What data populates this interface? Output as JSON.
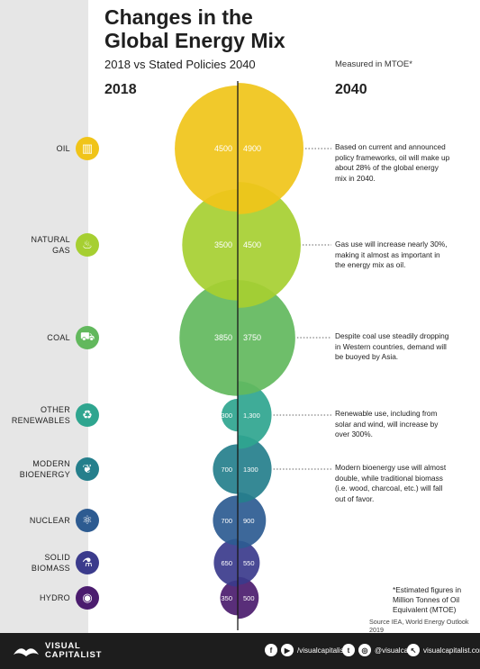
{
  "header": {
    "title_line1": "Changes in the",
    "title_line2": "Global Energy Mix",
    "subtitle": "2018 vs Stated Policies 2040",
    "measured": "Measured in MTOE*",
    "year_left": "2018",
    "year_right": "2040"
  },
  "categories": [
    {
      "label": "OIL",
      "icon": "oil-barrel-icon",
      "color": "#f0c419",
      "note": "Based on current and announced policy frameworks, oil will make up about 28% of the global energy mix in 2040."
    },
    {
      "label": "NATURAL\nGAS",
      "icon": "flame-icon",
      "color": "#a6cf31",
      "note": "Gas use will increase nearly 30%, making it almost as important in the energy mix as oil."
    },
    {
      "label": "COAL",
      "icon": "coal-cart-icon",
      "color": "#62b85d",
      "note": "Despite coal use steadily dropping in Western countries, demand will be buoyed by Asia."
    },
    {
      "label": "OTHER\nRENEWABLES",
      "icon": "recycle-icon",
      "color": "#2fa58f",
      "note": "Renewable use, including from solar and wind, will increase by over 300%."
    },
    {
      "label": "MODERN\nBIOENERGY",
      "icon": "leaf-icon",
      "color": "#257f8c",
      "note": "Modern bioenergy use will almost double, while traditional biomass (i.e. wood, charcoal, etc.) will fall out of favor."
    },
    {
      "label": "NUCLEAR",
      "icon": "atom-icon",
      "color": "#2d5b91",
      "note": ""
    },
    {
      "label": "SOLID\nBIOMASS",
      "icon": "flask-icon",
      "color": "#3b3b8c",
      "note": ""
    },
    {
      "label": "HYDRO",
      "icon": "water-drop-icon",
      "color": "#4b1c6e",
      "note": ""
    }
  ],
  "chart_data": {
    "type": "bubble",
    "categories": [
      "Oil",
      "Natural Gas",
      "Coal",
      "Other Renewables",
      "Modern Bioenergy",
      "Nuclear",
      "Solid Biomass",
      "Hydro"
    ],
    "series": [
      {
        "name": "2018",
        "values": [
          4500,
          3500,
          3850,
          300,
          700,
          700,
          650,
          350
        ],
        "labels": [
          "4500",
          "3500",
          "3850",
          "300",
          "700",
          "700",
          "650",
          "350"
        ]
      },
      {
        "name": "2040",
        "values": [
          4900,
          4500,
          3750,
          1300,
          1300,
          900,
          550,
          500
        ],
        "labels": [
          "4900",
          "4500",
          "3750",
          "1,300",
          "1300",
          "900",
          "550",
          "500"
        ]
      }
    ]
  },
  "footnote": "*Estimated figures in Million Tonnes of Oil Equivalent (MTOE)",
  "source": "Source IEA, World Energy Outlook 2019",
  "footer": {
    "logo_line1": "VISUAL",
    "logo_line2": "CAPITALIST",
    "handle1": "/visualcapitalist",
    "handle2": "@visualcap",
    "handle3": "visualcapitalist.com"
  }
}
